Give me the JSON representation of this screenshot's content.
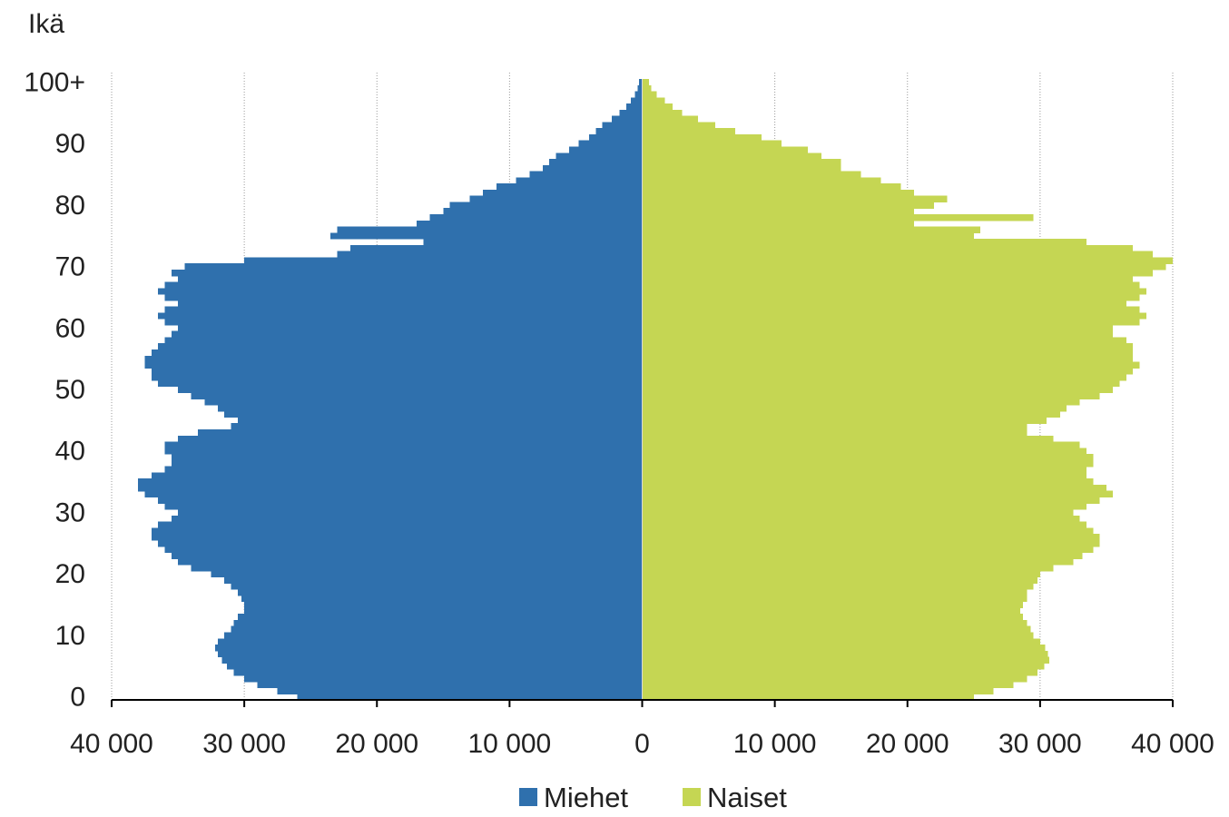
{
  "chart_data": {
    "type": "bar",
    "orientation": "horizontal-population-pyramid",
    "ylabel": "Ikä",
    "y_tick_labels": [
      "0",
      "10",
      "20",
      "30",
      "40",
      "50",
      "60",
      "70",
      "80",
      "90",
      "100+"
    ],
    "y_tick_values": [
      0,
      10,
      20,
      30,
      40,
      50,
      60,
      70,
      80,
      90,
      100
    ],
    "x_tick_labels": [
      "40 000",
      "30 000",
      "20 000",
      "10 000",
      "0",
      "10 000",
      "20 000",
      "30 000",
      "40 000"
    ],
    "x_tick_values": [
      -40000,
      -30000,
      -20000,
      -10000,
      0,
      10000,
      20000,
      30000,
      40000
    ],
    "xlim": [
      -40000,
      40000
    ],
    "ylim": [
      0,
      100
    ],
    "grid": "vertical",
    "legend_position": "bottom",
    "ages": [
      0,
      1,
      2,
      3,
      4,
      5,
      6,
      7,
      8,
      9,
      10,
      11,
      12,
      13,
      14,
      15,
      16,
      17,
      18,
      19,
      20,
      21,
      22,
      23,
      24,
      25,
      26,
      27,
      28,
      29,
      30,
      31,
      32,
      33,
      34,
      35,
      36,
      37,
      38,
      39,
      40,
      41,
      42,
      43,
      44,
      45,
      46,
      47,
      48,
      49,
      50,
      51,
      52,
      53,
      54,
      55,
      56,
      57,
      58,
      59,
      60,
      61,
      62,
      63,
      64,
      65,
      66,
      67,
      68,
      69,
      70,
      71,
      72,
      73,
      74,
      75,
      76,
      77,
      78,
      79,
      80,
      81,
      82,
      83,
      84,
      85,
      86,
      87,
      88,
      89,
      90,
      91,
      92,
      93,
      94,
      95,
      96,
      97,
      98,
      99,
      100
    ],
    "series": [
      {
        "name": "Miehet",
        "color": "#2f70ad",
        "side": "left",
        "values": [
          26000,
          27500,
          29000,
          30000,
          30800,
          31300,
          31700,
          32000,
          32200,
          32000,
          31500,
          31000,
          30800,
          30500,
          30000,
          30000,
          30200,
          30500,
          31000,
          31500,
          32500,
          34000,
          35000,
          35500,
          36000,
          36500,
          37000,
          37000,
          36500,
          35500,
          35000,
          36000,
          36500,
          37500,
          38000,
          38000,
          37000,
          36000,
          35500,
          35500,
          36000,
          36000,
          35000,
          33500,
          31000,
          30500,
          31500,
          32000,
          33000,
          34000,
          35000,
          36500,
          37000,
          37000,
          37500,
          37500,
          37000,
          36500,
          36000,
          35500,
          35000,
          36000,
          36500,
          36000,
          35000,
          36000,
          36500,
          36000,
          35000,
          35500,
          34500,
          30000,
          23000,
          22000,
          16500,
          23500,
          23000,
          17000,
          16000,
          15000,
          14500,
          13000,
          12000,
          11000,
          9500,
          8500,
          7500,
          7000,
          6500,
          5500,
          4800,
          4000,
          3500,
          3000,
          2300,
          1700,
          1200,
          850,
          550,
          350,
          250
        ]
      },
      {
        "name": "Naiset",
        "color": "#c5d653",
        "side": "right",
        "values": [
          25000,
          26500,
          28000,
          29000,
          29800,
          30300,
          30700,
          30600,
          30400,
          30000,
          29500,
          29300,
          29000,
          28700,
          28500,
          28700,
          29000,
          29000,
          29500,
          29800,
          30000,
          31000,
          32500,
          33200,
          34000,
          34500,
          34500,
          34000,
          33500,
          33000,
          32500,
          33500,
          34500,
          35500,
          35000,
          34000,
          33500,
          33500,
          34000,
          34000,
          33500,
          33000,
          31000,
          29000,
          29000,
          30500,
          31500,
          32000,
          33000,
          34500,
          35500,
          36000,
          36500,
          37000,
          37500,
          37000,
          37000,
          37000,
          36500,
          35500,
          35500,
          37500,
          38000,
          37500,
          36500,
          37500,
          38000,
          37500,
          37000,
          38500,
          39500,
          40000,
          38500,
          37000,
          33500,
          25000,
          25500,
          20500,
          29500,
          20500,
          22000,
          23000,
          20500,
          19500,
          18000,
          16500,
          15000,
          15000,
          13500,
          12500,
          10500,
          9000,
          7000,
          5500,
          4200,
          3000,
          2300,
          1700,
          1100,
          700,
          500
        ]
      }
    ]
  }
}
